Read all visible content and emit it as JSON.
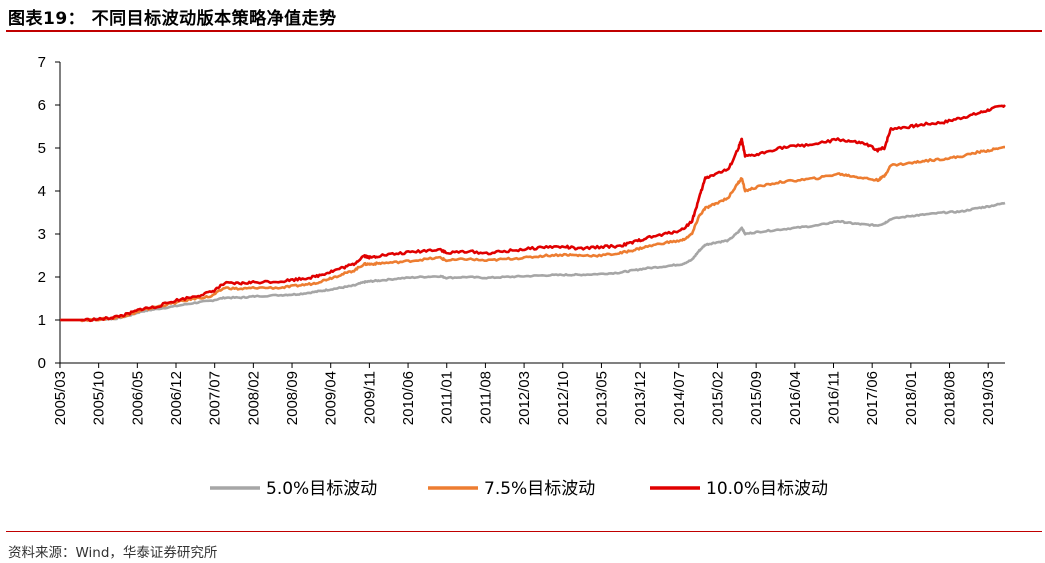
{
  "header": {
    "title": "图表19：  不同目标波动版本策略净值走势"
  },
  "footer": {
    "source": "资料来源：Wind，华泰证券研究所"
  },
  "colors": {
    "s5": "#a6a6a6",
    "s75": "#ed7d31",
    "s10": "#e00000",
    "rule": "#c00000"
  },
  "chart_data": {
    "type": "line",
    "title": "不同目标波动版本策略净值走势",
    "ylim": [
      0,
      7
    ],
    "yticks": [
      "0",
      "1",
      "2",
      "3",
      "4",
      "5",
      "6",
      "7"
    ],
    "xlim": [
      2005.167,
      2019.42
    ],
    "xticks": [
      "2005/03",
      "2005/10",
      "2006/05",
      "2006/12",
      "2007/07",
      "2008/02",
      "2008/09",
      "2009/04",
      "2009/11",
      "2010/06",
      "2011/01",
      "2011/08",
      "2012/03",
      "2012/10",
      "2013/05",
      "2013/12",
      "2014/07",
      "2015/02",
      "2015/09",
      "2016/04",
      "2016/11",
      "2017/06",
      "2018/01",
      "2018/08",
      "2019/03"
    ],
    "legend_position": "bottom",
    "grid": false,
    "series": [
      {
        "name": "5.0%目标波动",
        "color": "#a6a6a6",
        "points": [
          [
            2005.17,
            1.0
          ],
          [
            2005.5,
            1.0
          ],
          [
            2005.8,
            1.02
          ],
          [
            2006.0,
            1.03
          ],
          [
            2006.2,
            1.1
          ],
          [
            2006.4,
            1.2
          ],
          [
            2006.6,
            1.25
          ],
          [
            2006.9,
            1.32
          ],
          [
            2007.2,
            1.4
          ],
          [
            2007.45,
            1.45
          ],
          [
            2007.65,
            1.52
          ],
          [
            2007.9,
            1.52
          ],
          [
            2008.1,
            1.55
          ],
          [
            2008.5,
            1.58
          ],
          [
            2008.75,
            1.6
          ],
          [
            2009.0,
            1.65
          ],
          [
            2009.2,
            1.7
          ],
          [
            2009.4,
            1.75
          ],
          [
            2009.6,
            1.8
          ],
          [
            2009.75,
            1.88
          ],
          [
            2009.85,
            1.9
          ],
          [
            2010.0,
            1.92
          ],
          [
            2010.3,
            1.97
          ],
          [
            2010.6,
            2.0
          ],
          [
            2010.9,
            2.02
          ],
          [
            2011.0,
            1.98
          ],
          [
            2011.3,
            2.0
          ],
          [
            2011.6,
            1.98
          ],
          [
            2011.9,
            2.0
          ],
          [
            2012.2,
            2.02
          ],
          [
            2012.5,
            2.04
          ],
          [
            2012.8,
            2.05
          ],
          [
            2013.0,
            2.05
          ],
          [
            2013.3,
            2.07
          ],
          [
            2013.6,
            2.1
          ],
          [
            2013.8,
            2.15
          ],
          [
            2014.0,
            2.2
          ],
          [
            2014.3,
            2.25
          ],
          [
            2014.55,
            2.3
          ],
          [
            2014.7,
            2.4
          ],
          [
            2014.8,
            2.6
          ],
          [
            2014.9,
            2.75
          ],
          [
            2015.05,
            2.8
          ],
          [
            2015.25,
            2.85
          ],
          [
            2015.4,
            3.05
          ],
          [
            2015.45,
            3.15
          ],
          [
            2015.5,
            3.0
          ],
          [
            2015.7,
            3.05
          ],
          [
            2016.0,
            3.1
          ],
          [
            2016.3,
            3.15
          ],
          [
            2016.6,
            3.2
          ],
          [
            2016.9,
            3.3
          ],
          [
            2017.1,
            3.25
          ],
          [
            2017.3,
            3.22
          ],
          [
            2017.5,
            3.2
          ],
          [
            2017.6,
            3.25
          ],
          [
            2017.7,
            3.35
          ],
          [
            2018.0,
            3.42
          ],
          [
            2018.2,
            3.45
          ],
          [
            2018.5,
            3.5
          ],
          [
            2018.75,
            3.52
          ],
          [
            2019.0,
            3.6
          ],
          [
            2019.2,
            3.65
          ],
          [
            2019.42,
            3.72
          ]
        ]
      },
      {
        "name": "7.5%目标波动",
        "color": "#ed7d31",
        "points": [
          [
            2005.17,
            1.0
          ],
          [
            2005.5,
            1.0
          ],
          [
            2005.8,
            1.02
          ],
          [
            2006.0,
            1.05
          ],
          [
            2006.2,
            1.12
          ],
          [
            2006.4,
            1.22
          ],
          [
            2006.6,
            1.3
          ],
          [
            2006.9,
            1.4
          ],
          [
            2007.2,
            1.5
          ],
          [
            2007.45,
            1.55
          ],
          [
            2007.65,
            1.75
          ],
          [
            2007.9,
            1.72
          ],
          [
            2008.1,
            1.75
          ],
          [
            2008.5,
            1.75
          ],
          [
            2008.75,
            1.8
          ],
          [
            2009.0,
            1.85
          ],
          [
            2009.2,
            1.95
          ],
          [
            2009.4,
            2.05
          ],
          [
            2009.6,
            2.15
          ],
          [
            2009.75,
            2.3
          ],
          [
            2009.85,
            2.3
          ],
          [
            2010.0,
            2.32
          ],
          [
            2010.3,
            2.35
          ],
          [
            2010.6,
            2.4
          ],
          [
            2010.9,
            2.45
          ],
          [
            2011.0,
            2.38
          ],
          [
            2011.3,
            2.42
          ],
          [
            2011.6,
            2.38
          ],
          [
            2011.9,
            2.42
          ],
          [
            2012.2,
            2.45
          ],
          [
            2012.5,
            2.5
          ],
          [
            2012.8,
            2.52
          ],
          [
            2013.0,
            2.5
          ],
          [
            2013.3,
            2.5
          ],
          [
            2013.6,
            2.55
          ],
          [
            2013.8,
            2.62
          ],
          [
            2014.0,
            2.7
          ],
          [
            2014.3,
            2.8
          ],
          [
            2014.55,
            2.85
          ],
          [
            2014.7,
            3.0
          ],
          [
            2014.8,
            3.4
          ],
          [
            2014.9,
            3.6
          ],
          [
            2015.05,
            3.7
          ],
          [
            2015.25,
            3.85
          ],
          [
            2015.4,
            4.2
          ],
          [
            2015.45,
            4.3
          ],
          [
            2015.5,
            4.0
          ],
          [
            2015.7,
            4.1
          ],
          [
            2016.0,
            4.2
          ],
          [
            2016.3,
            4.25
          ],
          [
            2016.6,
            4.3
          ],
          [
            2016.9,
            4.4
          ],
          [
            2017.1,
            4.35
          ],
          [
            2017.3,
            4.3
          ],
          [
            2017.5,
            4.25
          ],
          [
            2017.6,
            4.35
          ],
          [
            2017.7,
            4.6
          ],
          [
            2018.0,
            4.65
          ],
          [
            2018.2,
            4.7
          ],
          [
            2018.5,
            4.75
          ],
          [
            2018.75,
            4.8
          ],
          [
            2019.0,
            4.9
          ],
          [
            2019.2,
            4.95
          ],
          [
            2019.42,
            5.02
          ]
        ]
      },
      {
        "name": "10.0%目标波动",
        "color": "#e00000",
        "points": [
          [
            2005.17,
            1.0
          ],
          [
            2005.5,
            1.0
          ],
          [
            2005.8,
            1.02
          ],
          [
            2006.0,
            1.07
          ],
          [
            2006.2,
            1.14
          ],
          [
            2006.4,
            1.26
          ],
          [
            2006.6,
            1.3
          ],
          [
            2006.9,
            1.45
          ],
          [
            2007.2,
            1.55
          ],
          [
            2007.45,
            1.65
          ],
          [
            2007.65,
            1.85
          ],
          [
            2007.9,
            1.85
          ],
          [
            2008.1,
            1.88
          ],
          [
            2008.5,
            1.9
          ],
          [
            2008.75,
            1.95
          ],
          [
            2009.0,
            2.0
          ],
          [
            2009.2,
            2.1
          ],
          [
            2009.4,
            2.2
          ],
          [
            2009.6,
            2.3
          ],
          [
            2009.75,
            2.5
          ],
          [
            2009.85,
            2.45
          ],
          [
            2010.0,
            2.5
          ],
          [
            2010.3,
            2.55
          ],
          [
            2010.6,
            2.6
          ],
          [
            2010.9,
            2.65
          ],
          [
            2011.0,
            2.55
          ],
          [
            2011.3,
            2.6
          ],
          [
            2011.6,
            2.55
          ],
          [
            2011.9,
            2.6
          ],
          [
            2012.2,
            2.65
          ],
          [
            2012.5,
            2.7
          ],
          [
            2012.8,
            2.7
          ],
          [
            2013.0,
            2.65
          ],
          [
            2013.3,
            2.7
          ],
          [
            2013.6,
            2.72
          ],
          [
            2013.8,
            2.8
          ],
          [
            2014.0,
            2.9
          ],
          [
            2014.3,
            3.0
          ],
          [
            2014.55,
            3.1
          ],
          [
            2014.7,
            3.3
          ],
          [
            2014.8,
            3.8
          ],
          [
            2014.9,
            4.3
          ],
          [
            2015.05,
            4.4
          ],
          [
            2015.25,
            4.5
          ],
          [
            2015.4,
            5.0
          ],
          [
            2015.45,
            5.2
          ],
          [
            2015.5,
            4.8
          ],
          [
            2015.7,
            4.85
          ],
          [
            2016.0,
            5.0
          ],
          [
            2016.3,
            5.05
          ],
          [
            2016.6,
            5.1
          ],
          [
            2016.9,
            5.2
          ],
          [
            2017.1,
            5.15
          ],
          [
            2017.3,
            5.1
          ],
          [
            2017.5,
            4.95
          ],
          [
            2017.6,
            5.0
          ],
          [
            2017.7,
            5.45
          ],
          [
            2018.0,
            5.5
          ],
          [
            2018.2,
            5.55
          ],
          [
            2018.5,
            5.6
          ],
          [
            2018.75,
            5.7
          ],
          [
            2019.0,
            5.8
          ],
          [
            2019.2,
            5.9
          ],
          [
            2019.42,
            6.0
          ]
        ]
      }
    ]
  }
}
